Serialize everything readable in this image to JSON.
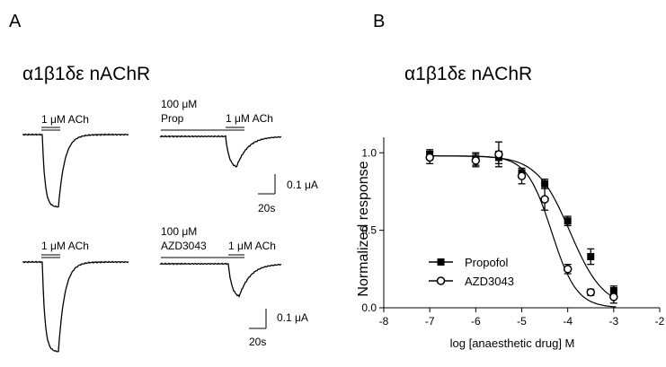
{
  "panel_a": {
    "label": "A",
    "title": "α1β1δε nAChR",
    "traces": {
      "top_left": {
        "drug_label": "1 μM ACh",
        "peak_fraction": 0.95
      },
      "top_right": {
        "pre_label_line1": "100 μM",
        "pre_label_line2": "Prop",
        "drug_label": "1 μM ACh",
        "peak_fraction": 0.42
      },
      "bottom_left": {
        "drug_label": "1 μM ACh",
        "peak_fraction": 1.0
      },
      "bottom_right": {
        "pre_label_line1": "100 μM",
        "pre_label_line2": "AZD3043",
        "drug_label": "1 μM ACh",
        "peak_fraction": 0.38
      }
    },
    "scale_bars": [
      {
        "current_label": "0.1 μA",
        "time_label": "20s"
      },
      {
        "current_label": "0.1 μA",
        "time_label": "20s"
      }
    ]
  },
  "panel_b": {
    "label": "B",
    "title": "α1β1δε nAChR"
  },
  "chart_data": {
    "type": "scatter",
    "title": "α1β1δε nAChR",
    "xlabel": "log [anaesthetic drug] M",
    "ylabel": "Normalized response",
    "xlim": [
      -8,
      -2
    ],
    "ylim": [
      0,
      1.1
    ],
    "xticks": [
      -8,
      -7,
      -6,
      -5,
      -4,
      -3,
      -2
    ],
    "xtick_labels": [
      "-8",
      "-7",
      "-6",
      "-5",
      "-4",
      "-3",
      "-2"
    ],
    "yticks": [
      0,
      0.5,
      1.0
    ],
    "ytick_labels": [
      "0.0",
      "0.5",
      "1.0"
    ],
    "grid": false,
    "legend": "bottom-left",
    "series": [
      {
        "name": "Propofol",
        "marker": "filled-square",
        "x": [
          -7,
          -6,
          -5.5,
          -5,
          -4.5,
          -4,
          -3.5,
          -3
        ],
        "y": [
          0.99,
          0.96,
          0.97,
          0.87,
          0.8,
          0.56,
          0.33,
          0.11
        ],
        "err": [
          0.03,
          0.04,
          0.04,
          0.03,
          0.03,
          0.03,
          0.05,
          0.03
        ],
        "fit": {
          "ic50_log": -3.95,
          "hill": 1.2,
          "top": 0.98
        }
      },
      {
        "name": "AZD3043",
        "marker": "open-circle",
        "x": [
          -7,
          -6,
          -5.5,
          -5,
          -4.5,
          -4,
          -3.5,
          -3
        ],
        "y": [
          0.97,
          0.95,
          0.99,
          0.85,
          0.7,
          0.25,
          0.1,
          0.07
        ],
        "err": [
          0.04,
          0.04,
          0.08,
          0.05,
          0.07,
          0.03,
          0.02,
          0.04
        ],
        "fit": {
          "ic50_log": -4.35,
          "hill": 1.6,
          "top": 0.98
        }
      }
    ]
  }
}
